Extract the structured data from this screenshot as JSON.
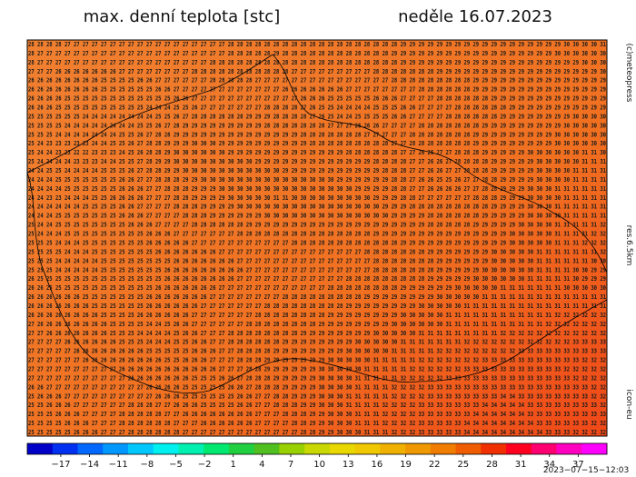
{
  "header": {
    "title": "max. denní teplota [stc]",
    "date": "neděle 16.07.2023"
  },
  "side_labels": {
    "copyright": "(c)meteopress",
    "resolution": "res.6.5km",
    "model": "icon-eu"
  },
  "footer": {
    "timestamp": "2023−07−15−12:03"
  },
  "map": {
    "color": "#f07a22",
    "grid_rows": [
      "28 28 28 28 27 27 27 27 27 27 27 27 27 27 27 27 27 27 27 27 27 27 28 28 28 28 28 28 28 28 28 28 28 28 28 28 28 28 28 28 28 29 29 29 29 29 29 29 29 29 29 29 29 29 29 29 29 29 29 30 30 30 30 31",
      "28 27 27 27 27 27 27 27 27 27 27 27 27 27 27 27 27 27 27 27 27 27 28 28 28 28 28 29 28 28 28 28 28 28 28 28 28 28 28 28 29 29 29 29 29 29 29 29 29 29 29 29 29 29 29 29 29 29 30 30 30 30 30 30",
      "28 27 27 27 27 27 27 27 27 27 27 27 27 27 27 27 27 27 27 27 28 28 28 28 28 28 28 28 28 28 28 28 28 28 28 28 28 28 28 28 28 29 29 29 29 29 29 29 29 29 29 29 29 29 29 29 29 29 29 29 29 30 30 30",
      "27 27 27 26 26 26 26 26 26 26 27 27 27 27 27 27 27 27 28 28 28 28 28 28 28 28 28 28 28 27 27 27 27 27 27 27 27 27 28 28 28 28 28 28 28 29 29 29 29 29 29 29 29 29 29 29 29 29 29 29 29 29 29 30",
      "26 26 26 26 26 26 26 26 25 25 25 25 26 26 27 27 27 27 27 27 28 28 28 28 28 27 27 27 27 27 27 27 27 27 27 27 27 27 27 27 28 28 28 28 28 28 28 28 28 29 29 29 29 29 29 29 29 29 29 29 29 29 29 29",
      "26 26 26 26 26 26 26 26 25 25 25 25 25 25 26 26 27 27 27 27 27 27 27 27 27 27 27 27 26 26 26 26 26 26 26 27 27 27 27 27 27 27 27 28 28 28 28 28 28 29 29 29 29 29 29 29 29 29 29 29 29 29 29 29",
      "26 26 26 26 25 25 25 25 25 25 25 25 25 25 25 25 26 26 27 27 27 27 27 27 27 27 27 27 27 27 26 26 26 25 25 25 25 25 26 26 26 27 27 27 27 28 28 28 28 28 28 29 29 29 29 29 29 29 29 29 29 29 29 29",
      "26 26 26 25 25 25 25 25 25 25 25 25 25 24 24 24 25 25 26 27 27 27 27 27 27 27 28 28 28 28 27 26 25 25 24 24 24 24 25 25 25 26 26 27 27 27 27 28 28 28 28 28 28 29 29 29 29 29 29 29 29 29 29 29",
      "25 25 25 25 25 25 24 24 24 24 24 24 24 24 25 25 26 27 28 28 28 28 28 28 29 29 29 28 28 28 28 27 26 25 24 24 25 25 25 25 26 26 27 27 27 27 28 28 28 28 28 28 29 29 29 29 29 29 29 29 30 30 30 30",
      "25 25 25 25 24 24 24 24 24 24 24 24 25 25 26 27 28 29 29 29 29 29 29 29 29 29 28 28 28 28 28 28 28 27 27 27 26 26 26 27 27 27 27 28 28 28 28 28 28 28 29 29 29 29 29 29 29 29 29 30 30 30 30 30",
      "25 25 25 24 24 24 24 24 24 24 25 25 26 27 28 28 29 29 29 29 29 29 29 29 29 29 29 29 29 29 28 28 28 28 28 28 28 27 27 27 27 27 28 28 28 28 28 28 28 29 29 29 29 29 29 29 29 29 30 30 30 30 30 30",
      "25 24 23 23 23 23 23 24 24 25 25 26 27 28 28 29 29 29 30 30 30 29 29 29 29 29 29 29 29 29 29 28 28 28 28 28 28 28 28 28 27 27 28 28 28 28 28 28 28 29 29 29 29 29 29 29 29 29 30 30 30 30 30 30",
      "25 24 24 23 23 22 22 23 23 23 24 25 26 28 28 29 30 30 30 30 30 30 29 29 29 29 29 29 29 29 29 29 29 29 29 28 28 28 28 28 28 27 27 26 26 27 27 28 28 28 29 29 29 29 29 30 30 30 30 30 30 31 31 30",
      "25 24 24 24 24 23 23 23 24 24 25 25 27 28 29 29 30 30 30 30 30 30 30 30 30 29 29 29 29 29 29 29 29 29 29 29 29 29 28 28 28 28 27 27 26 26 27 28 28 28 28 29 29 29 29 29 30 30 30 30 30 31 31 31",
      "24 24 25 25 24 24 24 24 25 25 25 26 27 28 28 29 29 30 30 30 30 30 30 30 30 30 30 30 29 29 29 29 29 29 29 29 29 29 29 28 28 28 27 27 26 26 27 27 28 28 28 29 29 29 29 29 30 30 30 30 31 31 31 31",
      "24 24 24 25 25 25 25 25 25 25 26 26 27 27 28 28 28 29 29 30 30 30 30 30 30 30 30 30 30 30 30 30 30 30 29 29 29 29 29 29 28 28 27 26 26 25 25 26 27 27 28 28 29 29 29 29 30 30 30 30 31 31 31 31",
      "24 24 24 24 25 25 25 25 25 25 26 26 26 27 27 28 28 28 29 29 29 30 30 30 30 30 30 30 30 30 30 30 30 30 30 30 29 29 29 29 28 28 27 27 26 26 26 26 27 27 28 28 29 29 29 30 30 30 31 31 31 31 31 31",
      "24 24 23 23 24 24 24 25 25 26 26 26 26 27 27 27 28 28 29 29 29 29 30 30 30 30 30 31 31 30 30 30 30 30 30 30 30 30 29 29 29 28 28 27 27 27 27 27 27 28 28 28 29 29 29 30 30 30 30 31 31 31 31 31",
      "24 24 24 24 24 24 25 25 25 25 26 26 27 27 27 27 28 28 28 29 29 29 29 30 30 30 30 30 30 30 30 30 30 30 30 30 30 30 30 29 29 29 28 28 28 28 28 28 28 28 28 29 29 29 29 30 30 30 31 31 31 31 31 31",
      "24 24 24 25 25 25 25 25 25 25 26 26 26 27 27 27 27 28 28 28 29 29 29 29 29 29 30 30 30 30 30 30 30 30 30 30 30 30 30 30 29 29 29 29 28 28 28 28 28 28 29 29 29 29 29 30 30 30 30 31 31 31 31 31",
      "25 24 24 25 25 25 25 25 25 25 25 26 26 26 27 27 27 27 28 28 28 28 28 28 29 29 29 29 29 29 29 29 29 29 29 29 29 29 29 29 29 29 29 29 28 28 28 28 28 29 29 29 29 29 30 30 30 30 31 31 31 31 31 32",
      "25 24 24 24 25 25 25 25 25 25 25 25 25 26 26 26 27 27 27 27 27 27 27 28 28 28 28 28 28 28 28 28 28 28 28 28 28 28 29 29 29 29 29 29 29 29 29 29 29 29 29 29 29 30 30 30 30 30 31 31 31 31 32 32",
      "25 25 25 24 24 24 25 25 25 25 25 25 25 26 26 26 26 26 27 27 27 27 27 27 27 27 27 27 27 28 28 28 28 28 28 28 28 28 28 28 28 29 29 29 29 29 29 29 29 29 29 29 29 30 30 30 30 30 31 31 31 32 32 32",
      "25 25 25 25 24 24 24 25 25 25 25 25 25 25 26 26 26 26 26 26 26 27 27 27 27 27 27 27 27 27 27 27 27 27 27 27 27 28 28 28 28 28 28 28 29 29 29 29 29 29 29 30 30 30 30 30 31 31 31 31 31 31 31 32",
      "25 25 25 24 24 24 24 24 25 25 25 25 25 25 25 25 26 26 26 26 26 26 26 27 27 27 27 27 27 27 27 27 27 27 27 27 27 27 28 28 28 28 28 28 28 29 29 29 29 29 29 30 30 30 30 30 31 31 31 31 31 31 30 30",
      "25 25 25 24 24 24 24 24 25 25 25 25 25 25 25 26 26 26 26 26 26 26 26 26 27 27 27 27 27 27 27 27 27 27 27 27 27 27 28 28 28 28 28 28 28 29 29 29 29 29 30 30 30 30 30 30 31 31 31 31 30 30 29 29",
      "26 25 25 25 25 25 25 25 25 25 25 25 25 25 25 26 26 26 26 26 26 26 26 27 27 27 27 27 27 27 27 27 27 27 27 28 28 28 28 28 28 28 28 28 29 29 29 29 29 30 30 30 30 30 30 31 31 31 31 31 30 29 29 29",
      "26 26 25 25 25 25 25 25 25 25 25 25 25 25 26 26 26 26 26 26 26 27 27 27 27 27 27 27 27 27 27 27 27 28 28 28 28 28 28 28 28 29 29 29 29 29 29 30 30 30 30 30 31 31 31 31 31 31 31 30 30 30 30 30",
      "26 26 26 26 26 26 25 25 25 25 25 25 25 26 26 26 26 26 26 26 27 27 27 27 27 27 27 27 28 28 28 28 28 28 28 28 28 29 29 29 29 29 29 29 29 30 30 30 30 30 31 31 31 31 31 31 31 31 31 31 31 31 31 31",
      "26 26 26 26 26 26 26 25 25 25 25 25 25 26 26 26 26 26 26 27 27 27 27 27 27 27 28 28 28 28 28 28 28 28 28 29 29 29 29 29 29 29 29 30 30 30 30 30 31 31 31 31 31 31 31 31 31 31 31 31 31 31 31 31",
      "26 26 26 26 26 26 26 26 25 25 25 25 26 26 26 26 26 26 27 27 27 27 27 27 27 28 28 28 28 28 28 28 28 29 29 29 29 29 29 29 29 30 30 30 30 30 31 31 31 31 31 31 31 31 31 31 31 31 32 32 32 32 32 32",
      "27 26 26 26 26 26 26 26 26 25 25 25 25 24 24 25 26 26 27 27 27 27 27 27 28 28 28 28 28 28 28 28 29 29 29 29 29 29 29 29 30 30 30 30 30 30 31 31 31 31 31 31 31 31 31 31 31 32 32 32 32 32 32 32",
      "27 27 26 26 26 26 26 26 26 25 25 25 24 24 24 24 25 26 26 27 27 27 28 28 28 28 28 28 28 28 29 29 29 29 29 29 29 29 30 30 30 30 30 31 31 31 31 31 31 31 31 31 32 32 32 32 32 32 32 32 32 32 32 32",
      "27 27 27 27 26 26 26 26 26 26 25 25 25 24 24 24 25 25 26 26 27 27 28 28 28 28 28 28 29 29 29 29 29 29 29 29 30 30 30 30 30 31 31 31 31 31 31 31 32 32 32 32 32 32 32 32 32 32 32 32 33 33 33 33",
      "27 27 27 27 27 26 26 26 26 26 26 26 26 25 25 25 25 25 26 26 26 27 27 28 28 28 28 29 29 29 29 29 29 29 29 30 30 30 30 30 31 31 31 31 31 32 32 32 32 32 32 32 32 32 33 33 33 33 33 33 33 33 33 33",
      "27 27 27 27 27 27 26 26 26 26 26 26 26 26 26 25 25 26 26 26 27 27 27 28 28 28 29 29 29 29 29 29 29 30 30 30 30 30 31 31 31 31 31 32 32 32 32 32 32 32 33 33 33 33 33 33 33 33 33 33 33 32 32 32",
      "27 27 27 27 27 27 27 27 27 27 26 26 26 26 26 26 26 26 26 26 26 27 27 27 28 28 29 29 29 29 29 29 30 30 30 30 30 31 31 31 31 31 32 32 32 32 32 32 33 33 33 33 33 33 33 33 33 33 33 32 32 32 32 32",
      "27 27 27 27 27 27 27 27 27 27 27 26 26 26 26 26 26 26 25 25 25 26 26 27 28 28 28 29 29 29 29 29 30 30 30 30 31 31 31 31 31 32 32 32 32 32 33 33 33 33 33 33 33 33 33 33 33 33 33 33 32 32 32 32",
      "26 26 27 27 27 27 27 27 27 27 27 27 27 26 26 26 26 25 25 25 25 25 26 26 27 28 28 28 29 29 29 29 30 30 30 30 31 31 31 31 32 32 32 32 33 33 33 33 33 33 33 33 33 33 33 33 33 33 33 33 33 33 32 32",
      "25 26 26 26 27 27 27 27 27 27 27 27 27 27 26 26 26 25 25 25 25 25 25 26 26 27 27 28 28 29 29 29 30 30 30 31 31 31 31 31 32 32 32 32 33 33 33 33 33 33 33 33 34 34 33 33 33 33 33 33 33 33 32 32",
      "25 25 26 26 26 27 27 27 27 27 27 28 28 28 27 27 26 26 26 25 25 25 25 26 26 27 27 28 28 28 29 29 30 30 30 31 31 31 31 32 32 32 32 33 33 33 33 33 33 33 34 34 34 34 34 33 33 33 33 33 33 33 33 32",
      "25 25 25 26 26 26 27 27 27 27 28 28 28 28 28 27 27 26 26 26 26 26 26 26 26 27 27 27 28 28 28 29 29 30 30 30 31 31 31 32 32 32 32 33 33 33 33 33 33 34 34 34 34 34 34 33 33 33 33 33 33 33 33 33",
      "25 25 25 25 26 26 26 27 27 27 28 28 28 28 28 28 27 27 27 26 26 26 26 26 26 27 27 27 27 28 28 29 29 30 30 30 31 31 31 32 32 32 32 33 33 33 33 33 34 34 34 34 34 34 34 34 33 33 33 33 33 33 32 32",
      "25 25 25 25 25 26 26 26 27 27 27 28 28 28 28 28 28 27 27 27 27 27 27 27 27 27 27 27 27 27 28 28 29 29 30 30 30 31 31 31 32 32 32 33 33 33 33 33 34 34 34 34 34 34 34 34 34 33 33 33 32 32 32 32"
    ]
  },
  "colorbar": {
    "lim": [
      -20.5,
      40
    ],
    "colors": [
      "#0000c8",
      "#0030f0",
      "#0068ff",
      "#0098ff",
      "#00c8ff",
      "#00f0f0",
      "#00f0b0",
      "#00e870",
      "#20d040",
      "#50c020",
      "#98d000",
      "#c8d800",
      "#e8d800",
      "#f0c800",
      "#f0b000",
      "#f09800",
      "#f07c00",
      "#f05c00",
      "#f03000",
      "#ff0020",
      "#ff0070",
      "#ff00c0",
      "#ff00ff"
    ],
    "ticks": [
      {
        "value": -17,
        "label": "−17"
      },
      {
        "value": -14,
        "label": "−14"
      },
      {
        "value": -11,
        "label": "−11"
      },
      {
        "value": -8,
        "label": "−8"
      },
      {
        "value": -5,
        "label": "−5"
      },
      {
        "value": -2,
        "label": "−2"
      },
      1,
      4,
      7,
      10,
      13,
      16,
      19,
      22,
      25,
      28,
      31,
      34,
      37
    ]
  }
}
